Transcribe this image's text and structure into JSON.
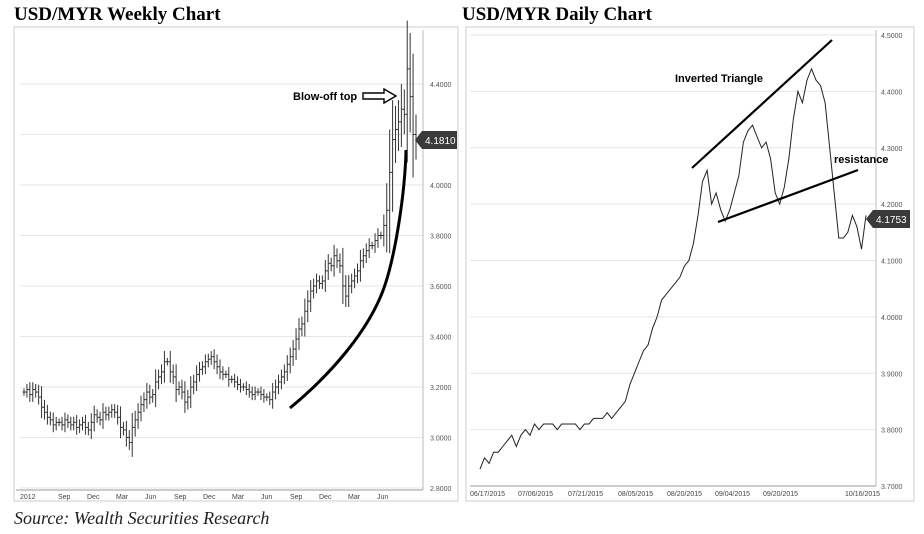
{
  "chart_data": [
    {
      "type": "ohlc",
      "title": "USD/MYR Weekly Chart",
      "x_ticks": [
        "2012",
        "Sep",
        "Dec",
        "Mar",
        "Jun",
        "Sep",
        "Dec",
        "Mar",
        "Jun",
        "Sep",
        "Dec",
        "Mar",
        "Jun"
      ],
      "y_ticks": [
        "2.8000",
        "3.0000",
        "3.2000",
        "3.4000",
        "3.6000",
        "3.8000",
        "4.0000",
        "4.2000",
        "4.4000"
      ],
      "ylim": [
        2.8,
        4.6
      ],
      "last_price": "4.1810",
      "annotations": {
        "blowoff": "Blow-off top"
      },
      "series": [
        {
          "values": [
            3.18,
            3.19,
            3.17,
            3.19,
            3.18,
            3.16,
            3.12,
            3.1,
            3.08,
            3.07,
            3.05,
            3.06,
            3.06,
            3.05,
            3.07,
            3.06,
            3.05,
            3.06,
            3.04,
            3.05,
            3.06,
            3.04,
            3.03,
            3.06,
            3.09,
            3.08,
            3.07,
            3.1,
            3.09,
            3.1,
            3.11,
            3.1,
            3.08,
            3.04,
            3.03,
            3.0,
            2.98,
            3.04,
            3.07,
            3.1,
            3.13,
            3.15,
            3.18,
            3.16,
            3.17,
            3.22,
            3.24,
            3.26,
            3.3,
            3.3,
            3.26,
            3.24,
            3.19,
            3.2,
            3.18,
            3.14,
            3.16,
            3.2,
            3.22,
            3.25,
            3.27,
            3.28,
            3.3,
            3.31,
            3.32,
            3.3,
            3.28,
            3.26,
            3.25,
            3.25,
            3.23,
            3.23,
            3.22,
            3.21,
            3.2,
            3.2,
            3.19,
            3.18,
            3.17,
            3.18,
            3.18,
            3.17,
            3.16,
            3.16,
            3.15,
            3.18,
            3.2,
            3.22,
            3.24,
            3.26,
            3.29,
            3.32,
            3.35,
            3.39,
            3.43,
            3.45,
            3.5,
            3.54,
            3.58,
            3.6,
            3.62,
            3.61,
            3.62,
            3.66,
            3.69,
            3.68,
            3.72,
            3.7,
            3.68,
            3.6,
            3.56,
            3.6,
            3.62,
            3.64,
            3.66,
            3.7,
            3.72,
            3.74,
            3.76,
            3.76,
            3.78,
            3.8,
            3.8,
            3.84,
            3.9,
            4.05,
            4.18,
            4.22,
            4.25,
            4.3,
            4.28,
            4.46,
            4.35,
            4.2,
            4.18
          ]
        }
      ]
    },
    {
      "type": "line",
      "title": "USD/MYR Daily Chart",
      "x_ticks": [
        "06/17/2015",
        "07/06/2015",
        "07/21/2015",
        "08/05/2015",
        "08/20/2015",
        "09/04/2015",
        "09/20/2015",
        "10/16/2015"
      ],
      "y_ticks": [
        "3.7000",
        "3.8000",
        "3.9000",
        "4.0000",
        "4.1000",
        "4.2000",
        "4.3000",
        "4.4000",
        "4.5000"
      ],
      "ylim": [
        3.7,
        4.5
      ],
      "last_price": "4.1753",
      "annotations": {
        "triangle": "Inverted Triangle",
        "resistance": "resistance"
      },
      "series": [
        {
          "values": [
            3.73,
            3.75,
            3.74,
            3.76,
            3.76,
            3.77,
            3.78,
            3.79,
            3.77,
            3.79,
            3.8,
            3.79,
            3.81,
            3.8,
            3.81,
            3.81,
            3.81,
            3.8,
            3.81,
            3.81,
            3.81,
            3.81,
            3.8,
            3.81,
            3.81,
            3.82,
            3.82,
            3.82,
            3.83,
            3.82,
            3.83,
            3.84,
            3.85,
            3.88,
            3.9,
            3.92,
            3.94,
            3.95,
            3.98,
            4.0,
            4.03,
            4.04,
            4.05,
            4.06,
            4.07,
            4.09,
            4.1,
            4.13,
            4.18,
            4.24,
            4.26,
            4.2,
            4.22,
            4.19,
            4.17,
            4.19,
            4.22,
            4.25,
            4.31,
            4.33,
            4.34,
            4.32,
            4.3,
            4.31,
            4.28,
            4.22,
            4.2,
            4.23,
            4.28,
            4.35,
            4.4,
            4.38,
            4.42,
            4.44,
            4.42,
            4.41,
            4.38,
            4.3,
            4.22,
            4.14,
            4.14,
            4.15,
            4.18,
            4.16,
            4.12,
            4.18
          ]
        }
      ]
    }
  ],
  "source": "Source: Wealth Securities Research"
}
